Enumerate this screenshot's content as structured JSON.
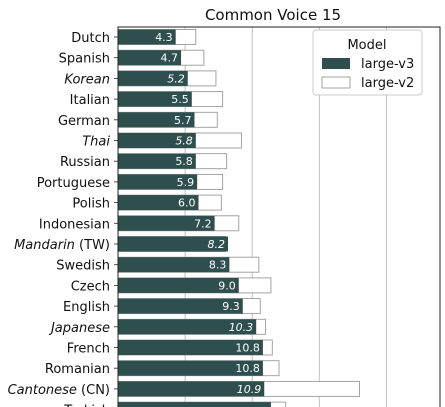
{
  "chart_data": {
    "type": "bar",
    "orientation": "horizontal",
    "title": "Common Voice 15",
    "grid": "vertical",
    "legend_position": "top-right",
    "legend_title": "Model",
    "categories": [
      {
        "label": "Dutch"
      },
      {
        "label": "Spanish"
      },
      {
        "label": "Korean",
        "italic": true
      },
      {
        "label": "Italian"
      },
      {
        "label": "German"
      },
      {
        "label": "Thai",
        "italic": true
      },
      {
        "label": "Russian"
      },
      {
        "label": "Portuguese"
      },
      {
        "label": "Polish"
      },
      {
        "label": "Indonesian"
      },
      {
        "label": "Mandarin",
        "suffix": " (TW)",
        "italic": true
      },
      {
        "label": "Swedish"
      },
      {
        "label": "Czech"
      },
      {
        "label": "English"
      },
      {
        "label": "Japanese",
        "italic": true
      },
      {
        "label": "French"
      },
      {
        "label": "Romanian"
      },
      {
        "label": "Cantonese",
        "suffix": " (CN)",
        "italic": true
      },
      {
        "label": "Turkish"
      }
    ],
    "series": [
      {
        "name": "large-v3",
        "color": "#2f4f4f",
        "values": [
          4.3,
          4.7,
          5.2,
          5.5,
          5.7,
          5.8,
          5.8,
          5.9,
          6.0,
          7.2,
          8.2,
          8.3,
          9.0,
          9.3,
          10.3,
          10.8,
          10.8,
          10.9,
          11.4
        ],
        "labels": [
          "4.3",
          "4.7",
          "5.2",
          "5.5",
          "5.7",
          "5.8",
          "5.8",
          "5.9",
          "6.0",
          "7.2",
          "8.2",
          "8.3",
          "9.0",
          "9.3",
          "10.3",
          "10.8",
          "10.8",
          "10.9",
          ""
        ]
      },
      {
        "name": "large-v2",
        "color": "#ffffff",
        "edgecolor": "#999999",
        "values": [
          5.8,
          6.4,
          7.3,
          7.8,
          7.4,
          9.2,
          8.1,
          7.8,
          7.7,
          9.0,
          8.0,
          10.5,
          11.4,
          10.6,
          11.0,
          11.5,
          12.0,
          18.0,
          12.5
        ]
      }
    ],
    "xlim": [
      0,
      24
    ]
  }
}
